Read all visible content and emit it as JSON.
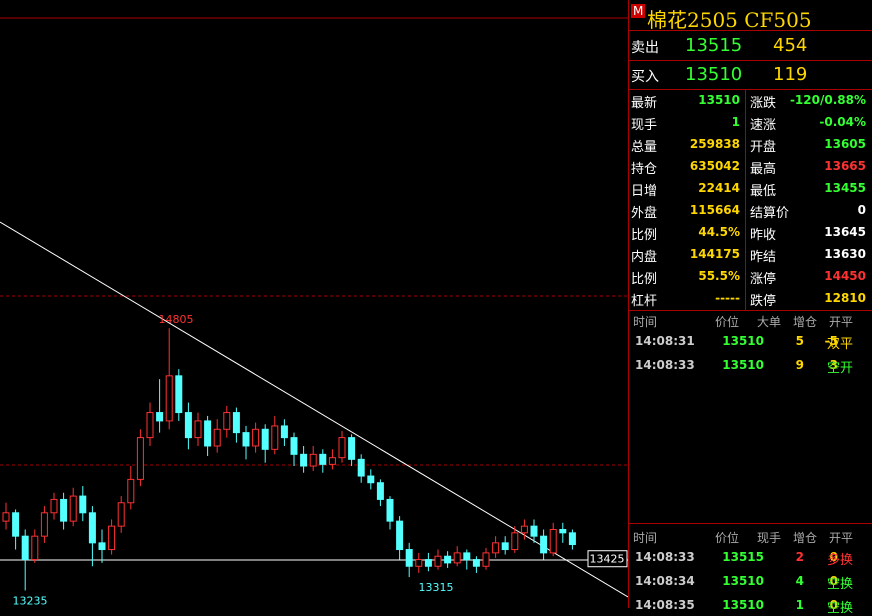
{
  "header": {
    "badge": "M",
    "title": "棉花2505  CF505"
  },
  "orderbook": [
    {
      "label": "卖出",
      "price": "13515",
      "volume": "454"
    },
    {
      "label": "买入",
      "price": "13510",
      "volume": "119"
    }
  ],
  "quote": {
    "rows": [
      [
        "最新",
        "13510",
        "涨跌",
        "-120/0.88%"
      ],
      [
        "现手",
        "1",
        "速涨",
        "-0.04%"
      ],
      [
        "总量",
        "259838",
        "开盘",
        "13605"
      ],
      [
        "持仓",
        "635042",
        "最高",
        "13665"
      ],
      [
        "日增",
        "22414",
        "最低",
        "13455"
      ],
      [
        "外盘",
        "115664",
        "结算价",
        "0"
      ],
      [
        "比例",
        "44.5%",
        "昨收",
        "13645"
      ],
      [
        "内盘",
        "144175",
        "昨结",
        "13630"
      ],
      [
        "比例",
        "55.5%",
        "涨停",
        "14450"
      ],
      [
        "杠杆",
        "-----",
        "跌停",
        "12810"
      ]
    ]
  },
  "ticks_top": {
    "headers": [
      "时间",
      "价位",
      "大单",
      "增仓",
      "开平"
    ],
    "rows": [
      [
        "14:08:31",
        "13510",
        "5",
        "-5",
        "双平"
      ],
      [
        "14:08:33",
        "13510",
        "9",
        "3",
        "空开"
      ]
    ]
  },
  "ticks_bottom": {
    "headers": [
      "时间",
      "价位",
      "现手",
      "增仓",
      "开平"
    ],
    "rows": [
      [
        "14:08:33",
        "13515",
        "2",
        "0",
        "多换"
      ],
      [
        "14:08:34",
        "13510",
        "4",
        "0",
        "空换"
      ],
      [
        "14:08:35",
        "13510",
        "1",
        "0",
        "空换"
      ]
    ]
  },
  "chart": {
    "ylim": [
      13130,
      16770
    ],
    "price_tag": "13425",
    "high_label": "14805",
    "low_label": "13315",
    "min_label": "13235",
    "candles": [
      [
        13650,
        13700,
        13760,
        13600
      ],
      [
        13700,
        13560,
        13720,
        13480
      ],
      [
        13560,
        13420,
        13600,
        13235
      ],
      [
        13420,
        13560,
        13600,
        13400
      ],
      [
        13560,
        13700,
        13740,
        13520
      ],
      [
        13700,
        13780,
        13820,
        13660
      ],
      [
        13780,
        13650,
        13820,
        13600
      ],
      [
        13650,
        13800,
        13850,
        13620
      ],
      [
        13800,
        13700,
        13860,
        13650
      ],
      [
        13700,
        13520,
        13740,
        13380
      ],
      [
        13520,
        13480,
        13600,
        13400
      ],
      [
        13480,
        13620,
        13660,
        13450
      ],
      [
        13620,
        13760,
        13800,
        13580
      ],
      [
        13760,
        13900,
        13980,
        13720
      ],
      [
        13900,
        14150,
        14200,
        13860
      ],
      [
        14150,
        14300,
        14360,
        14100
      ],
      [
        14300,
        14250,
        14500,
        14180
      ],
      [
        14250,
        14520,
        14805,
        14200
      ],
      [
        14520,
        14300,
        14560,
        14250
      ],
      [
        14300,
        14150,
        14360,
        14080
      ],
      [
        14150,
        14250,
        14300,
        14100
      ],
      [
        14250,
        14100,
        14280,
        14040
      ],
      [
        14100,
        14200,
        14260,
        14060
      ],
      [
        14200,
        14300,
        14340,
        14150
      ],
      [
        14300,
        14180,
        14330,
        14120
      ],
      [
        14180,
        14100,
        14220,
        14020
      ],
      [
        14100,
        14200,
        14240,
        14060
      ],
      [
        14200,
        14080,
        14230,
        14000
      ],
      [
        14080,
        14220,
        14280,
        14050
      ],
      [
        14220,
        14150,
        14260,
        14100
      ],
      [
        14150,
        14050,
        14180,
        13980
      ],
      [
        14050,
        13980,
        14100,
        13940
      ],
      [
        13980,
        14050,
        14100,
        13950
      ],
      [
        14050,
        13990,
        14080,
        13940
      ],
      [
        13990,
        14030,
        14080,
        13960
      ],
      [
        14030,
        14150,
        14190,
        14000
      ],
      [
        14150,
        14020,
        14170,
        13980
      ],
      [
        14020,
        13920,
        14050,
        13880
      ],
      [
        13920,
        13880,
        13960,
        13840
      ],
      [
        13880,
        13780,
        13900,
        13740
      ],
      [
        13780,
        13650,
        13800,
        13600
      ],
      [
        13650,
        13480,
        13680,
        13420
      ],
      [
        13480,
        13380,
        13520,
        13315
      ],
      [
        13380,
        13420,
        13460,
        13340
      ],
      [
        13420,
        13380,
        13460,
        13350
      ],
      [
        13380,
        13440,
        13480,
        13360
      ],
      [
        13440,
        13400,
        13470,
        13370
      ],
      [
        13400,
        13460,
        13500,
        13380
      ],
      [
        13460,
        13420,
        13480,
        13360
      ],
      [
        13420,
        13380,
        13440,
        13340
      ],
      [
        13380,
        13460,
        13490,
        13360
      ],
      [
        13460,
        13520,
        13560,
        13430
      ],
      [
        13520,
        13480,
        13560,
        13450
      ],
      [
        13480,
        13580,
        13620,
        13460
      ],
      [
        13580,
        13620,
        13660,
        13540
      ],
      [
        13620,
        13560,
        13660,
        13520
      ],
      [
        13560,
        13460,
        13600,
        13420
      ],
      [
        13460,
        13600,
        13640,
        13440
      ],
      [
        13600,
        13580,
        13640,
        13520
      ],
      [
        13580,
        13510,
        13600,
        13480
      ]
    ]
  }
}
